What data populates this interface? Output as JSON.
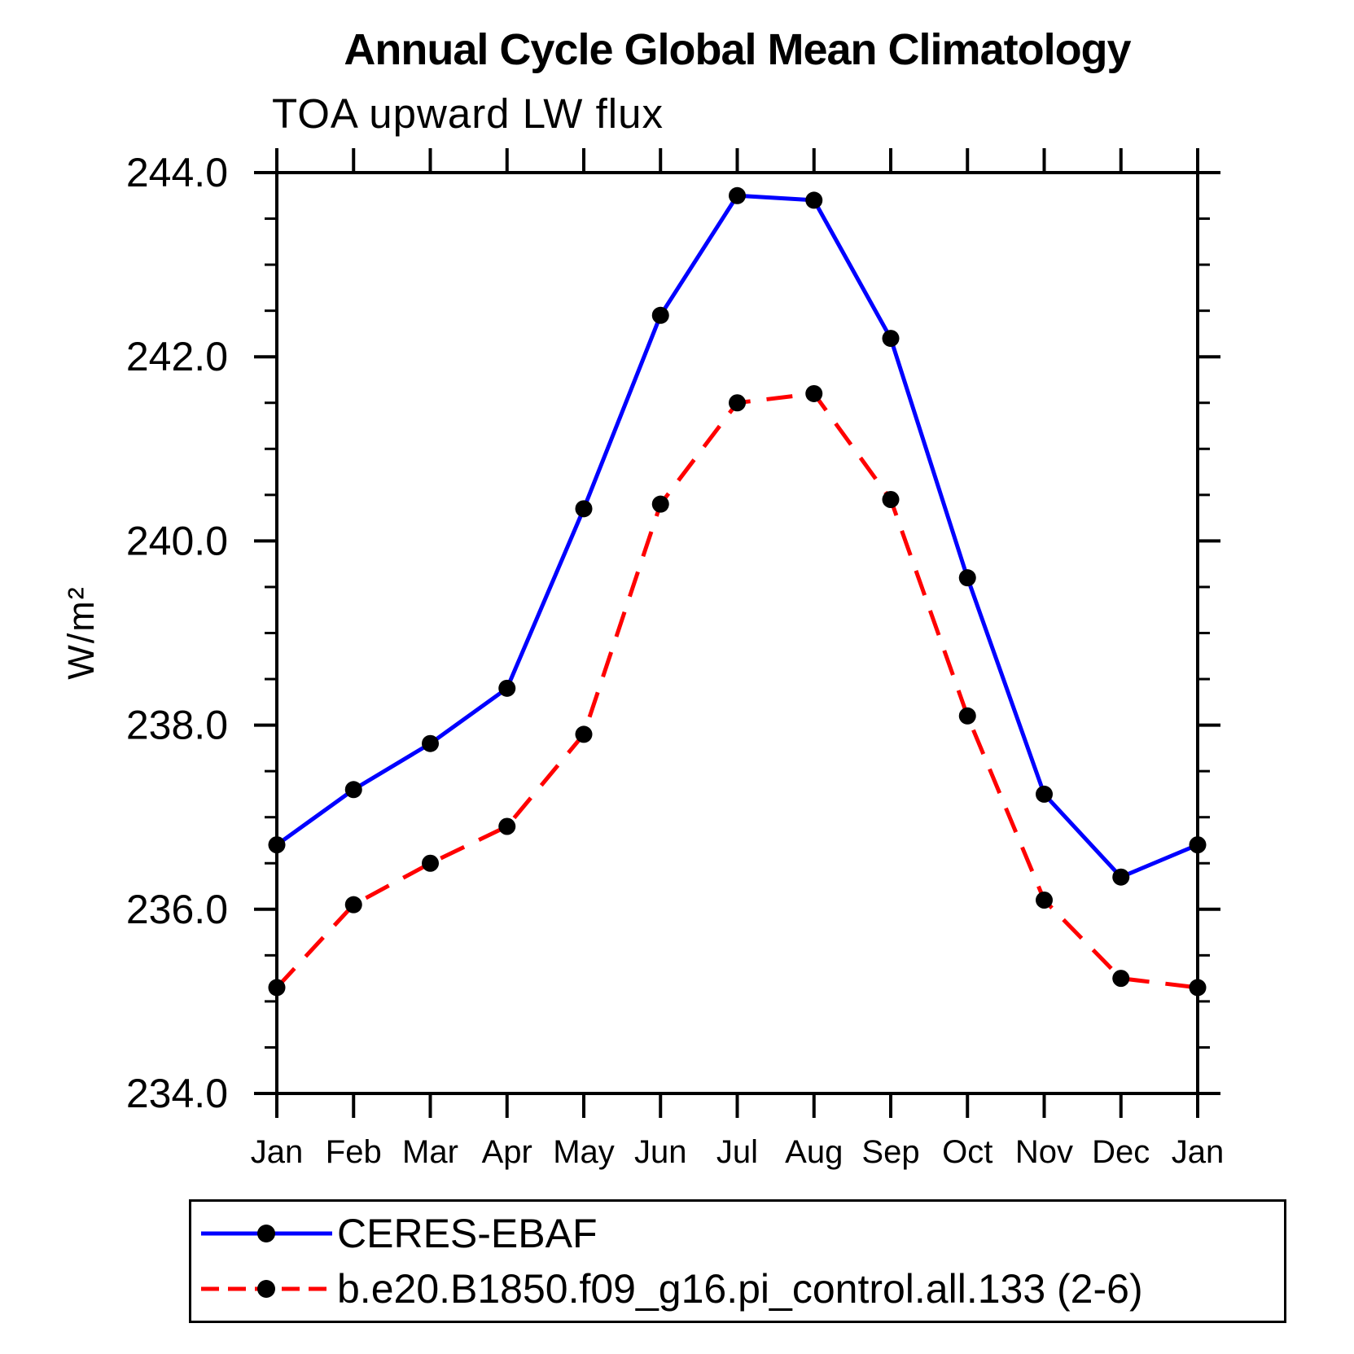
{
  "page": {
    "background": "#ffffff",
    "axis_color": "#000000"
  },
  "header": {
    "title": "Annual Cycle Global Mean Climatology",
    "subtitle": "TOA upward LW flux"
  },
  "chart_data": {
    "type": "line",
    "title": "Annual Cycle Global Mean Climatology",
    "subtitle": "TOA upward LW flux",
    "xlabel": "",
    "ylabel": "W/m²",
    "categories": [
      "Jan",
      "Feb",
      "Mar",
      "Apr",
      "May",
      "Jun",
      "Jul",
      "Aug",
      "Sep",
      "Oct",
      "Nov",
      "Dec",
      "Jan"
    ],
    "ylim": [
      234.0,
      244.0
    ],
    "y_major_ticks": [
      234.0,
      236.0,
      238.0,
      240.0,
      242.0,
      244.0
    ],
    "y_tick_labels": [
      "234.0",
      "236.0",
      "238.0",
      "240.0",
      "242.0",
      "244.0"
    ],
    "y_minor_step": 0.5,
    "grid": false,
    "legend_position": "bottom",
    "marker": "filled-circle",
    "marker_color": "#000000",
    "series": [
      {
        "name": "CERES-EBAF",
        "color": "#0000ff",
        "style": "solid",
        "values": [
          236.7,
          237.3,
          237.8,
          238.4,
          240.35,
          242.45,
          243.75,
          243.7,
          242.2,
          239.6,
          237.25,
          236.35,
          236.7
        ]
      },
      {
        "name": "b.e20.B1850.f09_g16.pi_control.all.133 (2-6)",
        "color": "#ff0000",
        "style": "dashed",
        "values": [
          235.15,
          236.05,
          236.5,
          236.9,
          237.9,
          240.4,
          241.5,
          241.6,
          240.45,
          238.1,
          236.1,
          235.25,
          235.15
        ]
      }
    ]
  }
}
